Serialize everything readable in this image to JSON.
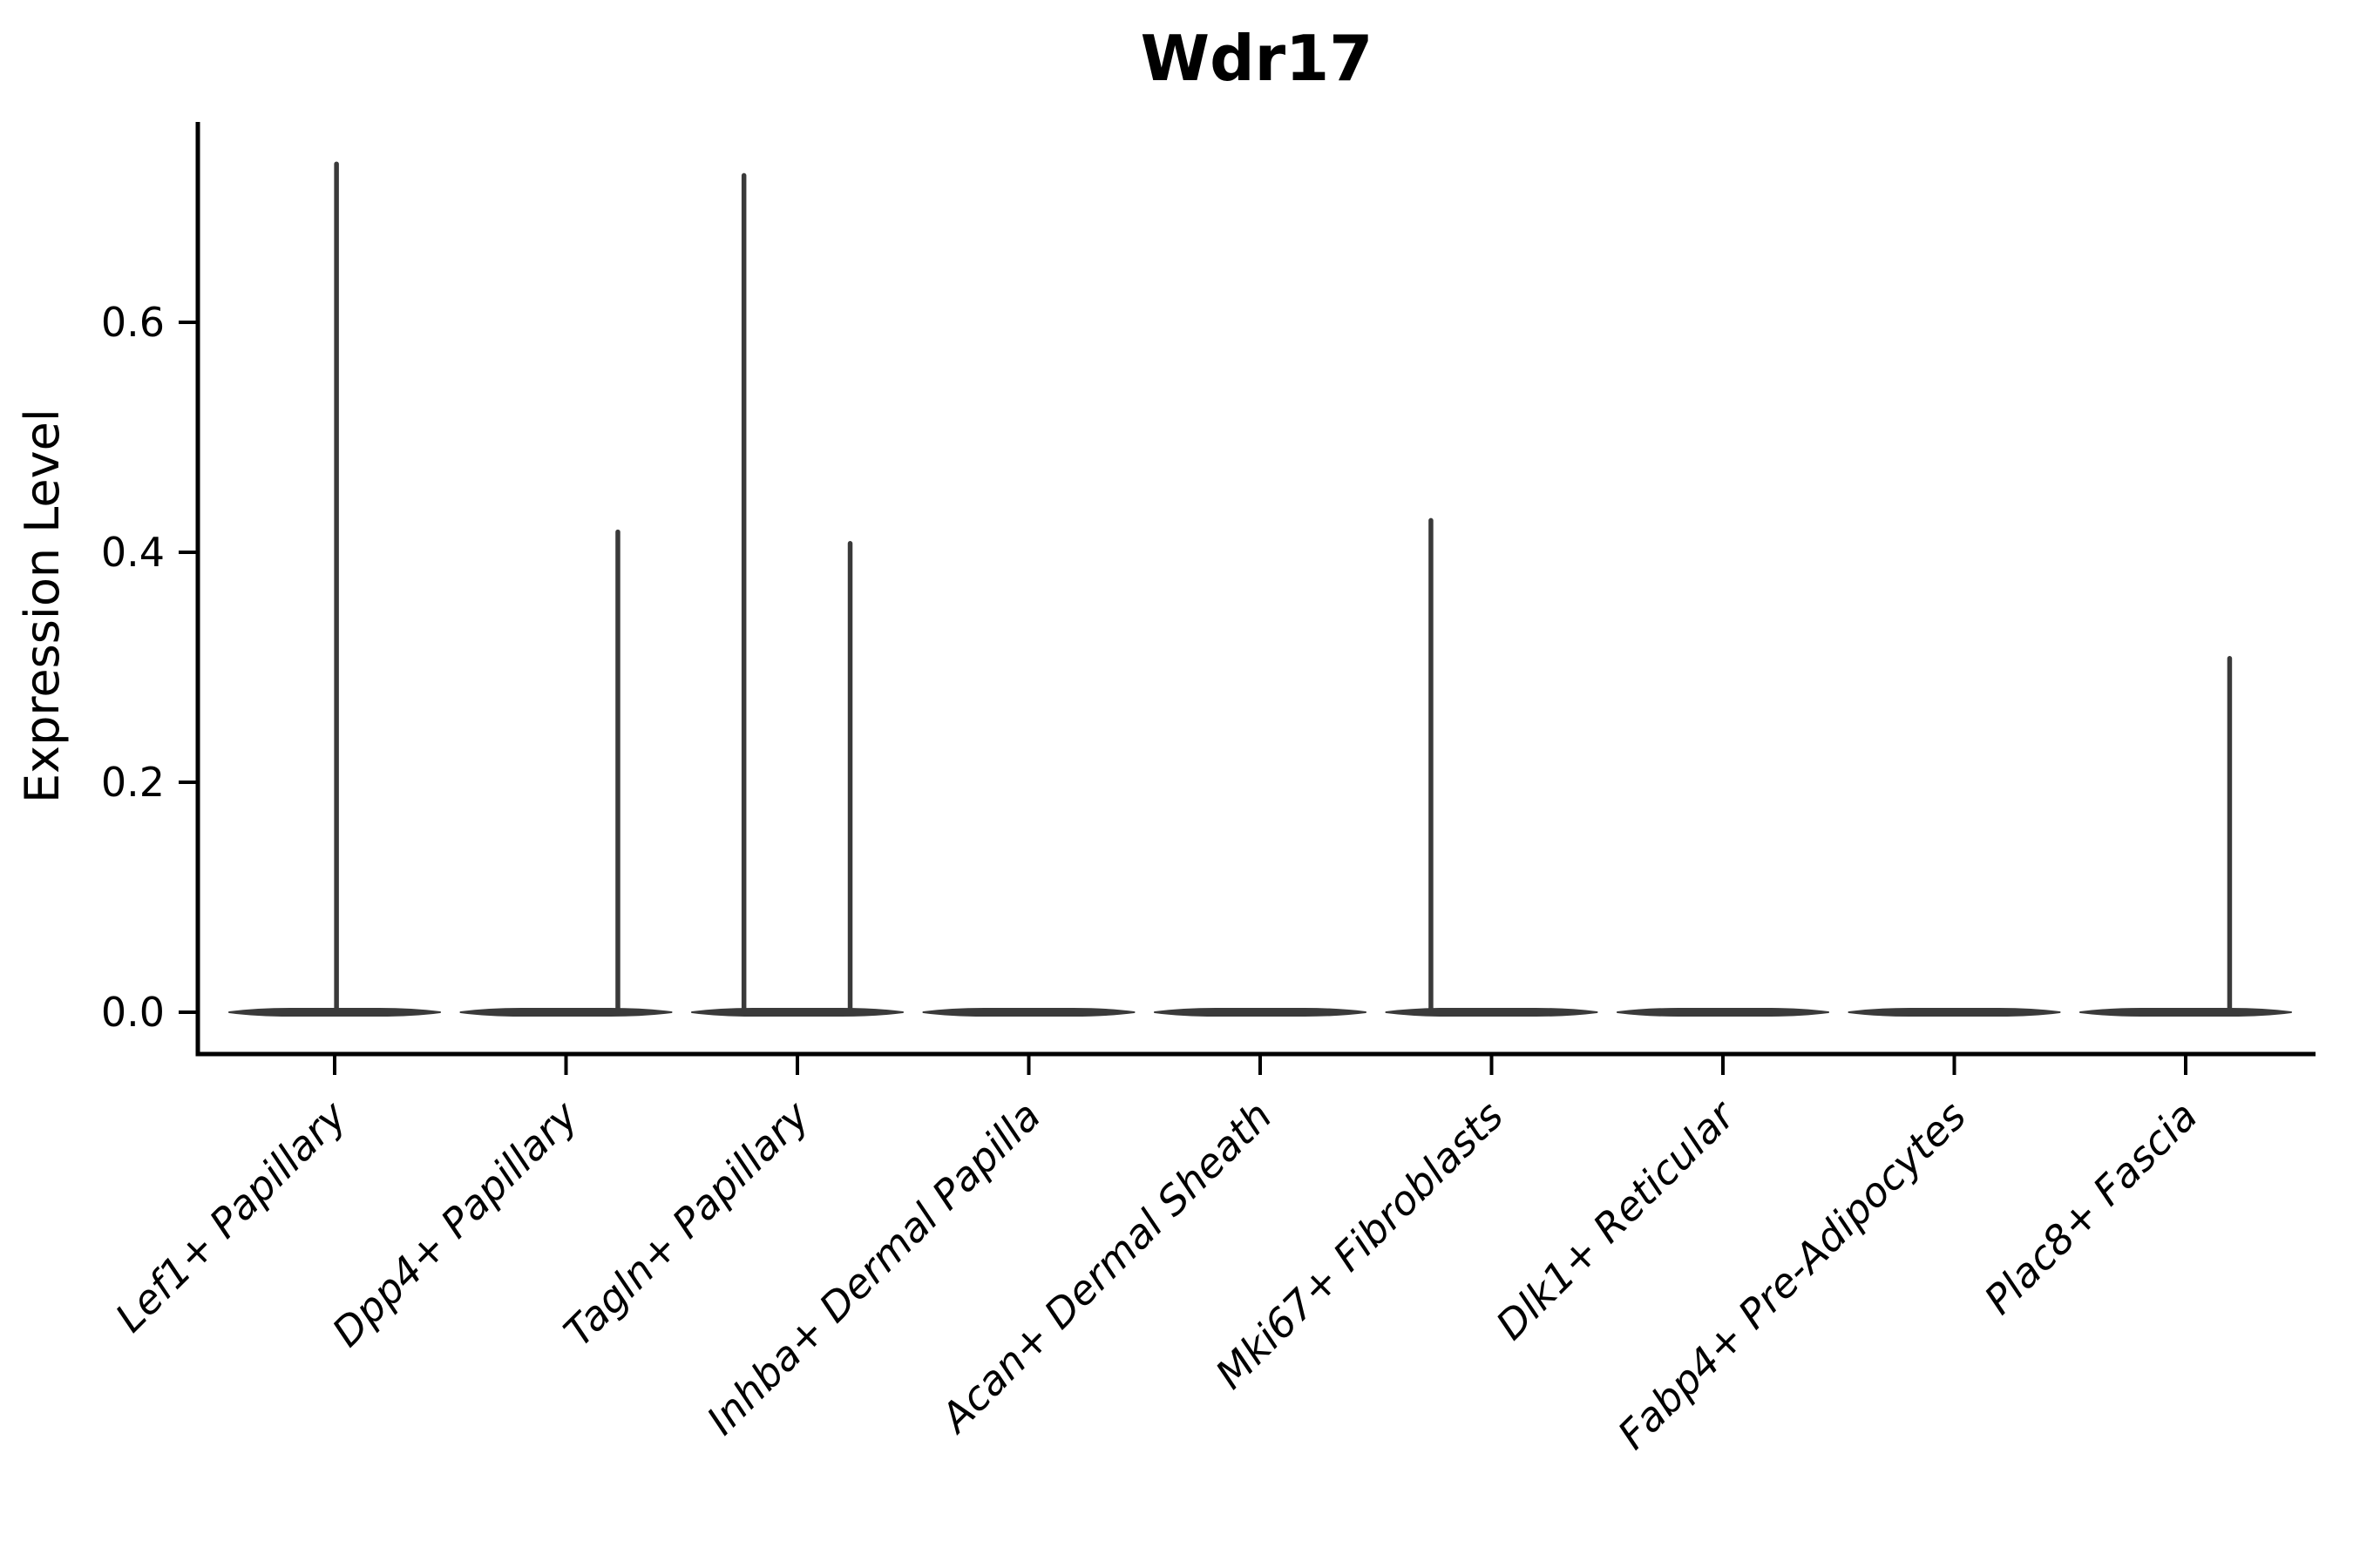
{
  "chart_data": {
    "type": "violin",
    "title": "Wdr17",
    "ylabel": "Expression Level",
    "xlabel": "",
    "grid": false,
    "legend": null,
    "background": "#ffffff",
    "colors": {
      "violin": "#3a3a3a",
      "axis": "#000000",
      "text": "#000000"
    },
    "yticks": [
      0.0,
      0.2,
      0.4,
      0.6
    ],
    "ytick_labels": [
      "0.0",
      "0.2",
      "0.4",
      "0.6"
    ],
    "ylim": [
      -0.036,
      0.775
    ],
    "categories": [
      "Lef1+ Papillary",
      "Dpp4+ Papillary",
      "Tagln+ Papillary",
      "Inhba+ Dermal Papilla",
      "Acan+ Dermal Sheath",
      "Mki67+ Fibroblasts",
      "Dlk1+ Reticular",
      "Fabp4+ Pre-Adipocytes",
      "Plac8+ Fascia"
    ],
    "series": [
      {
        "category": "Lef1+ Papillary",
        "zero_body": true,
        "max_expression": 0.74,
        "spikes": [
          {
            "offset_frac": 0.008,
            "value": 0.74
          }
        ]
      },
      {
        "category": "Dpp4+ Papillary",
        "zero_body": true,
        "max_expression": 0.42,
        "spikes": [
          {
            "offset_frac": 0.224,
            "value": 0.42
          }
        ]
      },
      {
        "category": "Tagln+ Papillary",
        "zero_body": true,
        "max_expression": 0.73,
        "spikes": [
          {
            "offset_frac": -0.231,
            "value": 0.73
          },
          {
            "offset_frac": 0.228,
            "value": 0.41
          }
        ]
      },
      {
        "category": "Inhba+ Dermal Papilla",
        "zero_body": true,
        "max_expression": 0.0,
        "spikes": []
      },
      {
        "category": "Acan+ Dermal Sheath",
        "zero_body": true,
        "max_expression": 0.0,
        "spikes": []
      },
      {
        "category": "Mki67+ Fibroblasts",
        "zero_body": true,
        "max_expression": 0.43,
        "spikes": [
          {
            "offset_frac": -0.262,
            "value": 0.43
          }
        ]
      },
      {
        "category": "Dlk1+ Reticular",
        "zero_body": true,
        "max_expression": 0.0,
        "spikes": []
      },
      {
        "category": "Fabp4+ Pre-Adipocytes",
        "zero_body": true,
        "max_expression": 0.0,
        "spikes": []
      },
      {
        "category": "Plac8+ Fascia",
        "zero_body": true,
        "max_expression": 0.31,
        "spikes": [
          {
            "offset_frac": 0.19,
            "value": 0.31
          }
        ]
      }
    ]
  }
}
